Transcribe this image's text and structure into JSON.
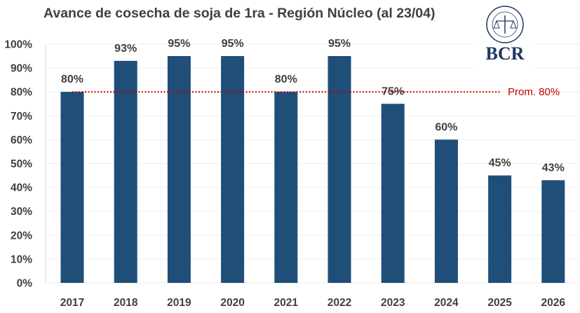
{
  "chart_data": {
    "type": "bar",
    "title": "Avance de cosecha de soja de 1ra - Región Núcleo (al 23/04)",
    "categories": [
      "2017",
      "2018",
      "2019",
      "2020",
      "2021",
      "2022",
      "2023",
      "2024",
      "2025",
      "2026"
    ],
    "values": [
      80,
      93,
      95,
      95,
      80,
      95,
      75,
      60,
      45,
      43
    ],
    "data_labels": [
      "80%",
      "93%",
      "95%",
      "95%",
      "80%",
      "95%",
      "75%",
      "60%",
      "45%",
      "43%"
    ],
    "ylim": [
      0,
      100
    ],
    "yticks": [
      0,
      10,
      20,
      30,
      40,
      50,
      60,
      70,
      80,
      90,
      100
    ],
    "ytick_labels": [
      "0%",
      "10%",
      "20%",
      "30%",
      "40%",
      "50%",
      "60%",
      "70%",
      "80%",
      "90%",
      "100%"
    ],
    "grid": true,
    "xlabel": "",
    "ylabel": "",
    "average": {
      "value": 80,
      "label": "Prom. 80%"
    },
    "colors": {
      "bar": "#1f4e79",
      "average": "#c00000",
      "grid": "#eeeeee"
    }
  },
  "logo": {
    "text": "BCR",
    "seal_text": "BOLSA DE COMERCIO DE ROSARIO"
  }
}
